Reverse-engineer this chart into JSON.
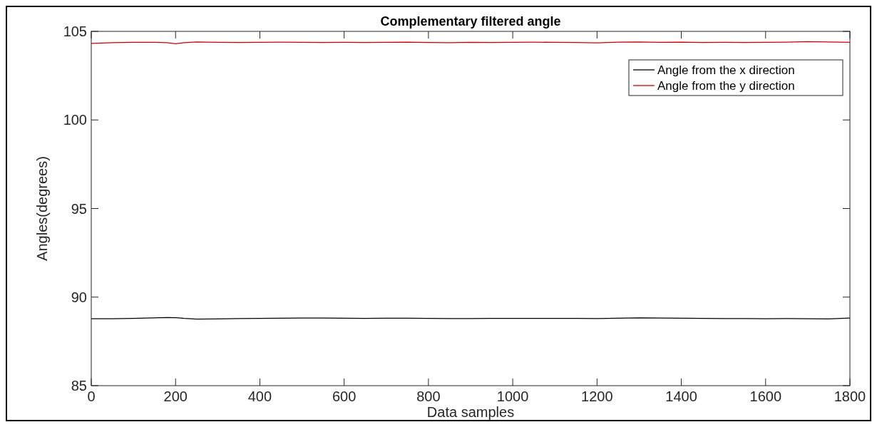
{
  "chart_data": {
    "type": "line",
    "title": "Complementary filtered angle",
    "xlabel": "Data samples",
    "ylabel": "Angles(degrees)",
    "xlim": [
      0,
      1800
    ],
    "xticks": [
      0,
      200,
      400,
      600,
      800,
      1000,
      1200,
      1400,
      1600,
      1800
    ],
    "ylim": [
      85,
      105
    ],
    "yticks": [
      85,
      90,
      95,
      100,
      105
    ],
    "grid": false,
    "legend": "top right",
    "line_style": "solid",
    "series": [
      {
        "name": "Angle from the x direction",
        "color": "#000000",
        "x": [
          0,
          50,
          100,
          150,
          180,
          200,
          220,
          250,
          300,
          350,
          400,
          450,
          500,
          550,
          600,
          650,
          700,
          750,
          800,
          850,
          900,
          950,
          1000,
          1050,
          1100,
          1150,
          1200,
          1250,
          1300,
          1350,
          1400,
          1450,
          1500,
          1550,
          1600,
          1650,
          1700,
          1750,
          1800
        ],
        "values": [
          88.78,
          88.78,
          88.8,
          88.83,
          88.85,
          88.84,
          88.8,
          88.76,
          88.77,
          88.79,
          88.8,
          88.81,
          88.82,
          88.82,
          88.81,
          88.8,
          88.81,
          88.81,
          88.8,
          88.79,
          88.79,
          88.8,
          88.8,
          88.8,
          88.8,
          88.8,
          88.79,
          88.81,
          88.83,
          88.82,
          88.81,
          88.8,
          88.79,
          88.79,
          88.78,
          88.79,
          88.78,
          88.77,
          88.82
        ]
      },
      {
        "name": "Angle from the y direction",
        "color": "#d00000",
        "x": [
          0,
          50,
          100,
          150,
          180,
          200,
          220,
          250,
          300,
          350,
          400,
          450,
          500,
          550,
          600,
          650,
          700,
          750,
          800,
          850,
          900,
          950,
          1000,
          1050,
          1100,
          1150,
          1200,
          1250,
          1300,
          1350,
          1400,
          1450,
          1500,
          1550,
          1600,
          1650,
          1700,
          1750,
          1800
        ],
        "values": [
          104.32,
          104.36,
          104.38,
          104.38,
          104.36,
          104.3,
          104.36,
          104.4,
          104.38,
          104.37,
          104.38,
          104.39,
          104.38,
          104.37,
          104.38,
          104.37,
          104.38,
          104.39,
          104.37,
          104.36,
          104.38,
          104.37,
          104.38,
          104.39,
          104.38,
          104.37,
          104.35,
          104.39,
          104.4,
          104.38,
          104.39,
          104.37,
          104.38,
          104.37,
          104.38,
          104.39,
          104.42,
          104.4,
          104.38
        ]
      }
    ]
  }
}
